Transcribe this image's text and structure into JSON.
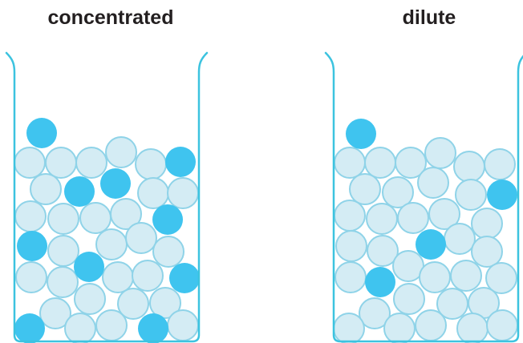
{
  "labels": {
    "left": "concentrated",
    "right": "dilute"
  },
  "colors": {
    "beaker": "#3cc3df",
    "solvent_fill": "#d4ecf4",
    "solvent_stroke": "#8fd3e8",
    "solute": "#3fc4ef"
  },
  "beakers": [
    {
      "name": "concentrated",
      "solute_particles": 11
    },
    {
      "name": "dilute",
      "solute_particles": 4
    }
  ]
}
